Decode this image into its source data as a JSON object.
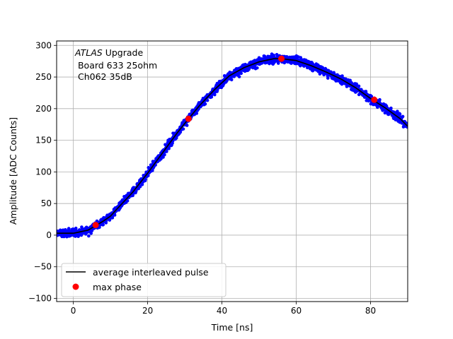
{
  "chart_data": {
    "type": "scatter",
    "title": "",
    "xlabel": "Time [ns]",
    "ylabel": "Amplitude [ADC Counts]",
    "xlim": [
      -4.5,
      90
    ],
    "ylim": [
      -105,
      307
    ],
    "grid": true,
    "x_ticks": [
      0,
      20,
      40,
      60,
      80
    ],
    "y_ticks": [
      -100,
      -50,
      0,
      50,
      100,
      150,
      200,
      250,
      300
    ],
    "annotation": {
      "italic": "ATLAS",
      "rest": " Upgrade",
      "line2": " Board 633 25ohm",
      "line3": " Ch062 35dB"
    },
    "legend": {
      "location": "lower-left",
      "entries": [
        {
          "label": "average interleaved pulse",
          "style": "line",
          "color": "#000000"
        },
        {
          "label": "max phase",
          "style": "marker",
          "color": "#ff0000"
        }
      ]
    },
    "series": [
      {
        "kind": "scatter-samples",
        "color": "#0000ff",
        "noise_counts": 5,
        "model_points": [
          [
            -4.5,
            3
          ],
          [
            0,
            3
          ],
          [
            4,
            8
          ],
          [
            6,
            15
          ],
          [
            8,
            22
          ],
          [
            10,
            30
          ],
          [
            12,
            43
          ],
          [
            16,
            68
          ],
          [
            20,
            98
          ],
          [
            24,
            130
          ],
          [
            28,
            162
          ],
          [
            31,
            184
          ],
          [
            34,
            205
          ],
          [
            38,
            230
          ],
          [
            42,
            252
          ],
          [
            46,
            265
          ],
          [
            50,
            274
          ],
          [
            54,
            279
          ],
          [
            56,
            279
          ],
          [
            60,
            276
          ],
          [
            64,
            268
          ],
          [
            68,
            258
          ],
          [
            72,
            247
          ],
          [
            76,
            233
          ],
          [
            80,
            216
          ],
          [
            84,
            201
          ],
          [
            88,
            184
          ],
          [
            90,
            172
          ]
        ]
      },
      {
        "kind": "line",
        "color": "#000000",
        "points": [
          [
            -4.5,
            3
          ],
          [
            0,
            3
          ],
          [
            4,
            8
          ],
          [
            6,
            15
          ],
          [
            8,
            22
          ],
          [
            10,
            30
          ],
          [
            12,
            43
          ],
          [
            16,
            68
          ],
          [
            20,
            98
          ],
          [
            24,
            130
          ],
          [
            28,
            162
          ],
          [
            31,
            184
          ],
          [
            34,
            205
          ],
          [
            38,
            230
          ],
          [
            42,
            252
          ],
          [
            46,
            265
          ],
          [
            50,
            274
          ],
          [
            54,
            279
          ],
          [
            56,
            279
          ],
          [
            60,
            276
          ],
          [
            64,
            268
          ],
          [
            68,
            258
          ],
          [
            72,
            247
          ],
          [
            76,
            233
          ],
          [
            80,
            216
          ],
          [
            84,
            201
          ],
          [
            88,
            184
          ],
          [
            90,
            172
          ]
        ]
      },
      {
        "kind": "markers",
        "color": "#ff0000",
        "points": [
          [
            6,
            16
          ],
          [
            31,
            184
          ],
          [
            56,
            279
          ],
          [
            81,
            214
          ]
        ]
      }
    ]
  }
}
